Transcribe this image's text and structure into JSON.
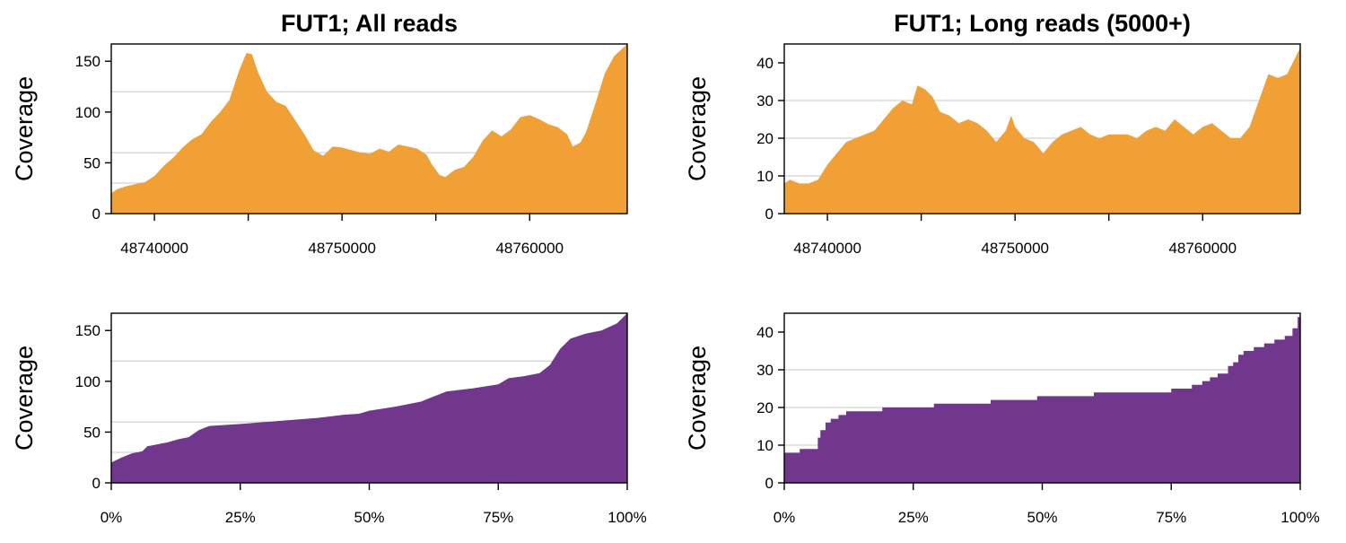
{
  "colors": {
    "coverage": "#f0a035",
    "sorted": "#71378c",
    "grid": "#c8c8c8"
  },
  "chart_data": [
    {
      "type": "area",
      "title": "FUT1; All reads",
      "ylabel": "Coverage",
      "xlim": [
        48737700,
        48765200
      ],
      "ylim": [
        0,
        167
      ],
      "yticks": [
        "0",
        "50",
        "100",
        "150"
      ],
      "ytick_values": [
        0,
        50,
        100,
        150
      ],
      "xticks": [
        "48740000",
        "48750000",
        "48760000"
      ],
      "xtick_values": [
        48740000,
        48750000,
        48760000
      ],
      "minor_xtick_values": [
        48745000,
        48755000
      ],
      "grid_y": [
        30,
        60,
        120
      ],
      "points": [
        [
          48737700,
          20
        ],
        [
          48738000,
          24
        ],
        [
          48738500,
          27
        ],
        [
          48739000,
          29
        ],
        [
          48739500,
          31
        ],
        [
          48740000,
          37
        ],
        [
          48740500,
          47
        ],
        [
          48741000,
          55
        ],
        [
          48741500,
          65
        ],
        [
          48742000,
          73
        ],
        [
          48742500,
          78
        ],
        [
          48743000,
          90
        ],
        [
          48743500,
          100
        ],
        [
          48744000,
          112
        ],
        [
          48744500,
          140
        ],
        [
          48744900,
          158
        ],
        [
          48745200,
          157
        ],
        [
          48745500,
          140
        ],
        [
          48746000,
          120
        ],
        [
          48746500,
          110
        ],
        [
          48747000,
          106
        ],
        [
          48747500,
          92
        ],
        [
          48748000,
          78
        ],
        [
          48748500,
          62
        ],
        [
          48749000,
          57
        ],
        [
          48749500,
          66
        ],
        [
          48750000,
          65
        ],
        [
          48751000,
          60
        ],
        [
          48751500,
          59
        ],
        [
          48752000,
          64
        ],
        [
          48752500,
          61
        ],
        [
          48753000,
          68
        ],
        [
          48753500,
          66
        ],
        [
          48754000,
          64
        ],
        [
          48754500,
          58
        ],
        [
          48754800,
          48
        ],
        [
          48755200,
          38
        ],
        [
          48755500,
          36
        ],
        [
          48756000,
          43
        ],
        [
          48756500,
          46
        ],
        [
          48757000,
          56
        ],
        [
          48757500,
          72
        ],
        [
          48758000,
          82
        ],
        [
          48758500,
          76
        ],
        [
          48759000,
          83
        ],
        [
          48759500,
          95
        ],
        [
          48760000,
          97
        ],
        [
          48760500,
          93
        ],
        [
          48761000,
          88
        ],
        [
          48761500,
          85
        ],
        [
          48762000,
          78
        ],
        [
          48762300,
          66
        ],
        [
          48762700,
          70
        ],
        [
          48763000,
          80
        ],
        [
          48763500,
          108
        ],
        [
          48764000,
          138
        ],
        [
          48764500,
          155
        ],
        [
          48765200,
          167
        ]
      ]
    },
    {
      "type": "area",
      "title": "FUT1; Long reads (5000+)",
      "ylabel": "Coverage",
      "xlim": [
        48737700,
        48765200
      ],
      "ylim": [
        0,
        45
      ],
      "yticks": [
        "0",
        "10",
        "20",
        "30",
        "40"
      ],
      "ytick_values": [
        0,
        10,
        20,
        30,
        40
      ],
      "xticks": [
        "48740000",
        "48750000",
        "48760000"
      ],
      "xtick_values": [
        48740000,
        48750000,
        48760000
      ],
      "minor_xtick_values": [
        48745000,
        48755000
      ],
      "grid_y": [
        10,
        20,
        30
      ],
      "points": [
        [
          48737700,
          8
        ],
        [
          48738000,
          9
        ],
        [
          48738500,
          8
        ],
        [
          48739000,
          8
        ],
        [
          48739500,
          9
        ],
        [
          48740000,
          13
        ],
        [
          48740500,
          16
        ],
        [
          48741000,
          19
        ],
        [
          48741500,
          20
        ],
        [
          48742000,
          21
        ],
        [
          48742500,
          22
        ],
        [
          48743000,
          25
        ],
        [
          48743500,
          28
        ],
        [
          48744000,
          30
        ],
        [
          48744500,
          29
        ],
        [
          48744800,
          34
        ],
        [
          48745200,
          33
        ],
        [
          48745600,
          31
        ],
        [
          48746000,
          27
        ],
        [
          48746500,
          26
        ],
        [
          48747000,
          24
        ],
        [
          48747500,
          25
        ],
        [
          48748000,
          24
        ],
        [
          48748500,
          22
        ],
        [
          48749000,
          19
        ],
        [
          48749500,
          22
        ],
        [
          48749800,
          26
        ],
        [
          48750000,
          23
        ],
        [
          48750500,
          20
        ],
        [
          48751000,
          19
        ],
        [
          48751500,
          16
        ],
        [
          48752000,
          19
        ],
        [
          48752500,
          21
        ],
        [
          48753000,
          22
        ],
        [
          48753500,
          23
        ],
        [
          48754000,
          21
        ],
        [
          48754500,
          20
        ],
        [
          48755000,
          21
        ],
        [
          48755500,
          21
        ],
        [
          48756000,
          21
        ],
        [
          48756500,
          20
        ],
        [
          48757000,
          22
        ],
        [
          48757500,
          23
        ],
        [
          48758000,
          22
        ],
        [
          48758500,
          25
        ],
        [
          48759000,
          23
        ],
        [
          48759500,
          21
        ],
        [
          48760000,
          23
        ],
        [
          48760500,
          24
        ],
        [
          48761000,
          22
        ],
        [
          48761500,
          20
        ],
        [
          48762000,
          20
        ],
        [
          48762500,
          23
        ],
        [
          48763000,
          30
        ],
        [
          48763500,
          37
        ],
        [
          48764000,
          36
        ],
        [
          48764500,
          37
        ],
        [
          48765200,
          44
        ]
      ]
    },
    {
      "type": "area",
      "title": "",
      "ylabel": "Coverage",
      "xlim": [
        0,
        100
      ],
      "ylim": [
        0,
        167
      ],
      "yticks": [
        "0",
        "50",
        "100",
        "150"
      ],
      "ytick_values": [
        0,
        50,
        100,
        150
      ],
      "xticks": [
        "0%",
        "25%",
        "50%",
        "75%",
        "100%"
      ],
      "xtick_values": [
        0,
        25,
        50,
        75,
        100
      ],
      "grid_y": [
        30,
        60,
        120
      ],
      "points": [
        [
          0,
          20
        ],
        [
          2,
          25
        ],
        [
          4,
          29
        ],
        [
          6,
          31
        ],
        [
          7,
          36
        ],
        [
          9,
          38
        ],
        [
          11,
          40
        ],
        [
          13,
          43
        ],
        [
          15,
          45
        ],
        [
          17,
          52
        ],
        [
          19,
          56
        ],
        [
          22,
          57
        ],
        [
          25,
          58
        ],
        [
          30,
          60
        ],
        [
          35,
          62
        ],
        [
          40,
          64
        ],
        [
          45,
          67
        ],
        [
          48,
          68
        ],
        [
          50,
          71
        ],
        [
          55,
          75
        ],
        [
          60,
          80
        ],
        [
          62,
          84
        ],
        [
          65,
          90
        ],
        [
          70,
          93
        ],
        [
          75,
          97
        ],
        [
          77,
          103
        ],
        [
          80,
          105
        ],
        [
          83,
          108
        ],
        [
          85,
          116
        ],
        [
          87,
          132
        ],
        [
          89,
          142
        ],
        [
          92,
          147
        ],
        [
          95,
          150
        ],
        [
          98,
          157
        ],
        [
          100,
          167
        ]
      ]
    },
    {
      "type": "area",
      "title": "",
      "ylabel": "Coverage",
      "xlim": [
        0,
        100
      ],
      "ylim": [
        0,
        45
      ],
      "yticks": [
        "0",
        "10",
        "20",
        "30",
        "40"
      ],
      "ytick_values": [
        0,
        10,
        20,
        30,
        40
      ],
      "xticks": [
        "0%",
        "25%",
        "50%",
        "75%",
        "100%"
      ],
      "xtick_values": [
        0,
        25,
        50,
        75,
        100
      ],
      "grid_y": [
        10,
        20,
        30
      ],
      "step": true,
      "points": [
        [
          0,
          8
        ],
        [
          3,
          9
        ],
        [
          6.5,
          12
        ],
        [
          7,
          14
        ],
        [
          8,
          16
        ],
        [
          9,
          17
        ],
        [
          10.5,
          18
        ],
        [
          12,
          19
        ],
        [
          19,
          20
        ],
        [
          29,
          21
        ],
        [
          40,
          22
        ],
        [
          49,
          23
        ],
        [
          60,
          24
        ],
        [
          75,
          25
        ],
        [
          79,
          26
        ],
        [
          81,
          27
        ],
        [
          82.5,
          28
        ],
        [
          84,
          29
        ],
        [
          86,
          31
        ],
        [
          87,
          32
        ],
        [
          88,
          34
        ],
        [
          89,
          35
        ],
        [
          91,
          36
        ],
        [
          93,
          37
        ],
        [
          95,
          38
        ],
        [
          97,
          39
        ],
        [
          98.5,
          41
        ],
        [
          99.5,
          44
        ],
        [
          100,
          44
        ]
      ]
    }
  ]
}
